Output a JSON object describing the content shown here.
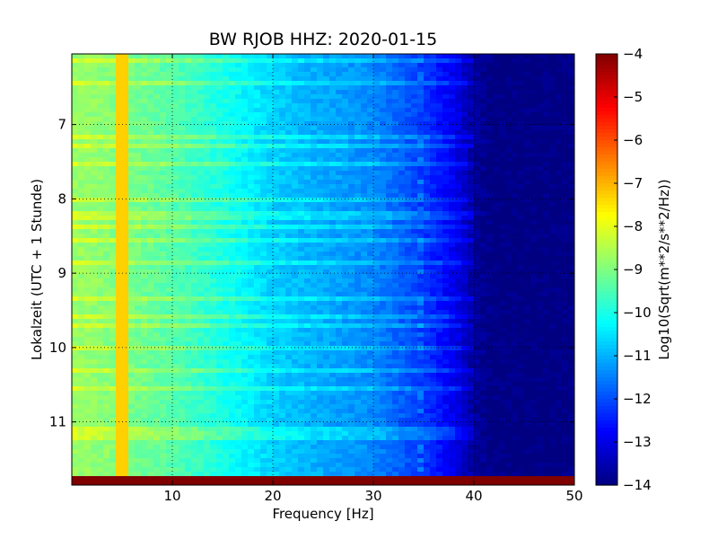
{
  "chart_data": {
    "type": "heatmap",
    "title": "BW RJOB HHZ: 2020-01-15",
    "xlabel": "Frequency [Hz]",
    "ylabel": "Lokalzeit (UTC + 1 Stunde)",
    "xlim": [
      0,
      50
    ],
    "ylim": [
      11.85,
      6.05
    ],
    "x_ticks": [
      10,
      20,
      30,
      40,
      50
    ],
    "y_ticks": [
      7,
      8,
      9,
      10,
      11
    ],
    "grid": true,
    "colormap": "jet",
    "colorbar": {
      "label": "Log10(Sqrt(m**2/s**2/Hz))",
      "range": [
        -14,
        -4
      ],
      "ticks": [
        -4,
        -5,
        -6,
        -7,
        -8,
        -9,
        -10,
        -11,
        -12,
        -13,
        -14
      ]
    },
    "spectrum_profile": {
      "frequency": [
        0,
        5,
        10,
        15,
        20,
        25,
        30,
        35,
        38,
        40,
        42,
        50
      ],
      "level": [
        -8.7,
        -9.0,
        -9.4,
        -10.0,
        -10.7,
        -11.1,
        -11.4,
        -12.2,
        -12.9,
        -13.7,
        -14,
        -14
      ]
    },
    "annotations": {
      "tonal_line_hz": 5,
      "tonal_line_level": -7.3,
      "drifting_line_hz": 34.5,
      "final_row_level": -4
    }
  }
}
